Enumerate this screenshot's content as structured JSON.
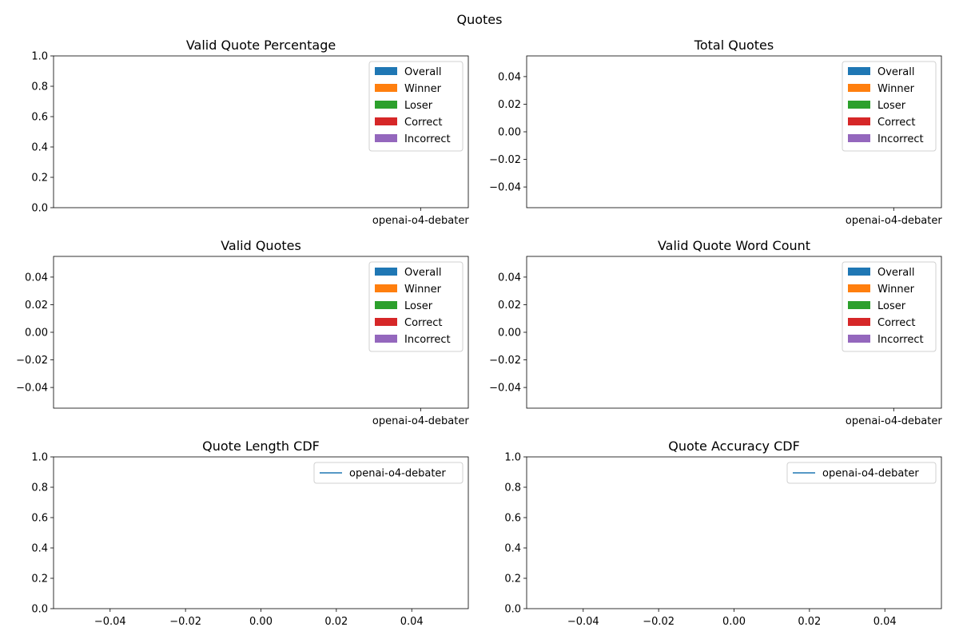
{
  "figure": {
    "title": "Quotes"
  },
  "chart_data": [
    {
      "type": "bar",
      "title": "Valid Quote Percentage",
      "categories": [
        "openai-o4-debater"
      ],
      "series": [
        {
          "name": "Overall",
          "values": [
            null
          ],
          "color": "#1f77b4"
        },
        {
          "name": "Winner",
          "values": [
            null
          ],
          "color": "#ff7f0e"
        },
        {
          "name": "Loser",
          "values": [
            null
          ],
          "color": "#2ca02c"
        },
        {
          "name": "Correct",
          "values": [
            null
          ],
          "color": "#d62728"
        },
        {
          "name": "Incorrect",
          "values": [
            null
          ],
          "color": "#9467bd"
        }
      ],
      "ylim": [
        0,
        1
      ],
      "yticks": [
        "0.0",
        "0.2",
        "0.4",
        "0.6",
        "0.8",
        "1.0"
      ],
      "legend": "top-right",
      "grid": false
    },
    {
      "type": "bar",
      "title": "Total Quotes",
      "categories": [
        "openai-o4-debater"
      ],
      "series": [
        {
          "name": "Overall",
          "values": [
            null
          ],
          "color": "#1f77b4"
        },
        {
          "name": "Winner",
          "values": [
            null
          ],
          "color": "#ff7f0e"
        },
        {
          "name": "Loser",
          "values": [
            null
          ],
          "color": "#2ca02c"
        },
        {
          "name": "Correct",
          "values": [
            null
          ],
          "color": "#d62728"
        },
        {
          "name": "Incorrect",
          "values": [
            null
          ],
          "color": "#9467bd"
        }
      ],
      "ylim": [
        -0.055,
        0.055
      ],
      "yticks": [
        "−0.04",
        "−0.02",
        "0.00",
        "0.02",
        "0.04"
      ],
      "legend": "top-right",
      "grid": false
    },
    {
      "type": "bar",
      "title": "Valid Quotes",
      "categories": [
        "openai-o4-debater"
      ],
      "series": [
        {
          "name": "Overall",
          "values": [
            null
          ],
          "color": "#1f77b4"
        },
        {
          "name": "Winner",
          "values": [
            null
          ],
          "color": "#ff7f0e"
        },
        {
          "name": "Loser",
          "values": [
            null
          ],
          "color": "#2ca02c"
        },
        {
          "name": "Correct",
          "values": [
            null
          ],
          "color": "#d62728"
        },
        {
          "name": "Incorrect",
          "values": [
            null
          ],
          "color": "#9467bd"
        }
      ],
      "ylim": [
        -0.055,
        0.055
      ],
      "yticks": [
        "−0.04",
        "−0.02",
        "0.00",
        "0.02",
        "0.04"
      ],
      "legend": "top-right",
      "grid": false
    },
    {
      "type": "bar",
      "title": "Valid Quote Word Count",
      "categories": [
        "openai-o4-debater"
      ],
      "series": [
        {
          "name": "Overall",
          "values": [
            null
          ],
          "color": "#1f77b4"
        },
        {
          "name": "Winner",
          "values": [
            null
          ],
          "color": "#ff7f0e"
        },
        {
          "name": "Loser",
          "values": [
            null
          ],
          "color": "#2ca02c"
        },
        {
          "name": "Correct",
          "values": [
            null
          ],
          "color": "#d62728"
        },
        {
          "name": "Incorrect",
          "values": [
            null
          ],
          "color": "#9467bd"
        }
      ],
      "ylim": [
        -0.055,
        0.055
      ],
      "yticks": [
        "−0.04",
        "−0.02",
        "0.00",
        "0.02",
        "0.04"
      ],
      "legend": "top-right",
      "grid": false
    },
    {
      "type": "line",
      "title": "Quote Length CDF",
      "series": [
        {
          "name": "openai-o4-debater",
          "x": [],
          "y": [],
          "color": "#1f77b4"
        }
      ],
      "xlim": [
        -0.055,
        0.055
      ],
      "ylim": [
        0,
        1
      ],
      "xticks": [
        "−0.04",
        "−0.02",
        "0.00",
        "0.02",
        "0.04"
      ],
      "yticks": [
        "0.0",
        "0.2",
        "0.4",
        "0.6",
        "0.8",
        "1.0"
      ],
      "legend": "top-right",
      "grid": false
    },
    {
      "type": "line",
      "title": "Quote Accuracy CDF",
      "series": [
        {
          "name": "openai-o4-debater",
          "x": [],
          "y": [],
          "color": "#1f77b4"
        }
      ],
      "xlim": [
        -0.055,
        0.055
      ],
      "ylim": [
        0,
        1
      ],
      "xticks": [
        "−0.04",
        "−0.02",
        "0.00",
        "0.02",
        "0.04"
      ],
      "yticks": [
        "0.0",
        "0.2",
        "0.4",
        "0.6",
        "0.8",
        "1.0"
      ],
      "legend": "top-right",
      "grid": false
    }
  ]
}
